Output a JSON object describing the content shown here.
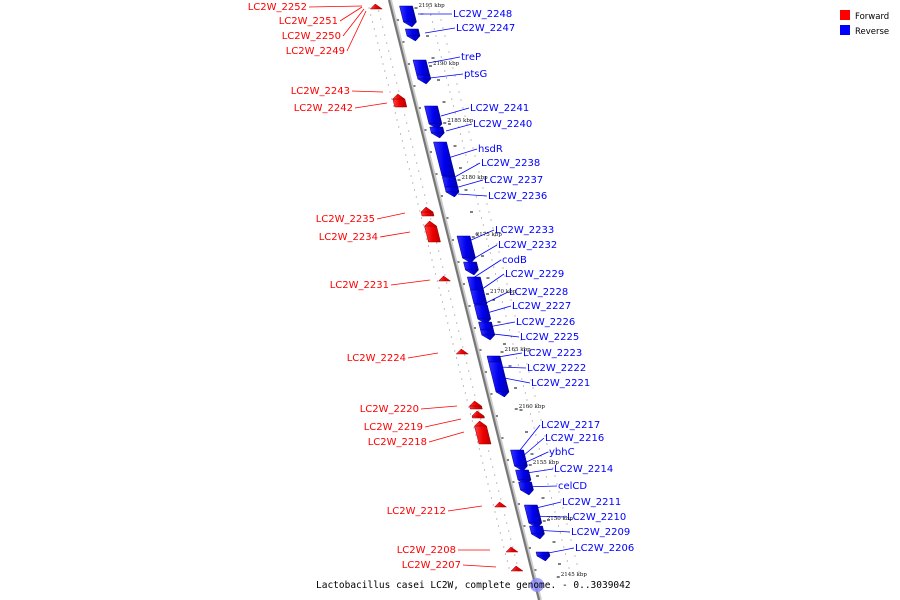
{
  "caption": "Lactobacillus casei LC2W, complete genome. - 0..3039042",
  "legend": [
    {
      "label": "Forward",
      "color": "#ff0000"
    },
    {
      "label": "Reverse",
      "color": "#0000ff"
    }
  ],
  "kbp_marks": [
    "2195 kbp",
    "2190 kbp",
    "2185 kbp",
    "2180 kbp",
    "2175 kbp",
    "2170 kbp",
    "2165 kbp",
    "2160 kbp",
    "2155 kbp",
    "2150 kbp",
    "2145 kbp"
  ],
  "forward_genes": [
    "LC2W_2252",
    "LC2W_2251",
    "LC2W_2250",
    "LC2W_2249",
    "LC2W_2243",
    "LC2W_2242",
    "LC2W_2235",
    "LC2W_2234",
    "LC2W_2231",
    "LC2W_2224",
    "LC2W_2220",
    "LC2W_2219",
    "LC2W_2218",
    "LC2W_2212",
    "LC2W_2208",
    "LC2W_2207"
  ],
  "reverse_genes": [
    "LC2W_2248",
    "LC2W_2247",
    "treP",
    "ptsG",
    "LC2W_2241",
    "LC2W_2240",
    "hsdR",
    "LC2W_2238",
    "LC2W_2237",
    "LC2W_2236",
    "LC2W_2233",
    "LC2W_2232",
    "codB",
    "LC2W_2229",
    "LC2W_2228",
    "LC2W_2227",
    "LC2W_2226",
    "LC2W_2225",
    "LC2W_2223",
    "LC2W_2222",
    "LC2W_2221",
    "LC2W_2217",
    "LC2W_2216",
    "ybhC",
    "LC2W_2214",
    "celCD",
    "LC2W_2211",
    "LC2W_2210",
    "LC2W_2209",
    "LC2W_2206"
  ]
}
